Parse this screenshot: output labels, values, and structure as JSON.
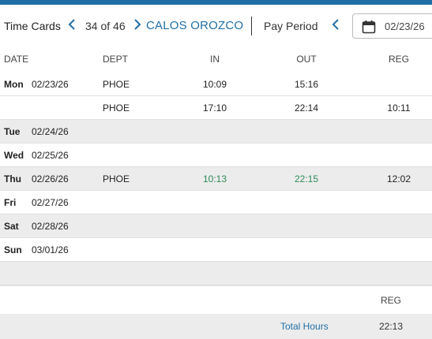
{
  "header": {
    "title": "Time Cards",
    "prev_icon": "chevron-left-icon",
    "counter": "34 of 46",
    "next_icon": "chevron-right-icon",
    "employee": "CALOS OROZCO",
    "pay_period_label": "Pay Period",
    "pay_period_prev_icon": "chevron-left-icon",
    "calendar_icon": "calendar-icon",
    "date_value": "02/23/26"
  },
  "accent_color": "#1f6fa6",
  "columns": {
    "date": "DATE",
    "dept": "DEPT",
    "in": "IN",
    "out": "OUT",
    "reg": "REG"
  },
  "rows": [
    {
      "day": "Mon",
      "date": "02/23/26",
      "dept": "PHOE",
      "in": "10:09",
      "out": "15:16",
      "reg": ""
    },
    {
      "day": "",
      "date": "",
      "dept": "PHOE",
      "in": "17:10",
      "out": "22:14",
      "reg": "10:11"
    },
    {
      "day": "Tue",
      "date": "02/24/26",
      "dept": "",
      "in": "",
      "out": "",
      "reg": ""
    },
    {
      "day": "Wed",
      "date": "02/25/26",
      "dept": "",
      "in": "",
      "out": "",
      "reg": ""
    },
    {
      "day": "Thu",
      "date": "02/26/26",
      "dept": "PHOE",
      "in": "10:13",
      "out": "22:15",
      "reg": "12:02"
    },
    {
      "day": "Fri",
      "date": "02/27/26",
      "dept": "",
      "in": "",
      "out": "",
      "reg": ""
    },
    {
      "day": "Sat",
      "date": "02/28/26",
      "dept": "",
      "in": "",
      "out": "",
      "reg": ""
    },
    {
      "day": "Sun",
      "date": "03/01/26",
      "dept": "",
      "in": "",
      "out": "",
      "reg": ""
    },
    {
      "day": "",
      "date": "",
      "dept": "",
      "in": "",
      "out": "",
      "reg": ""
    }
  ],
  "footer": {
    "reg_label": "REG",
    "total_label": "Total Hours",
    "total_value": "22:13"
  }
}
